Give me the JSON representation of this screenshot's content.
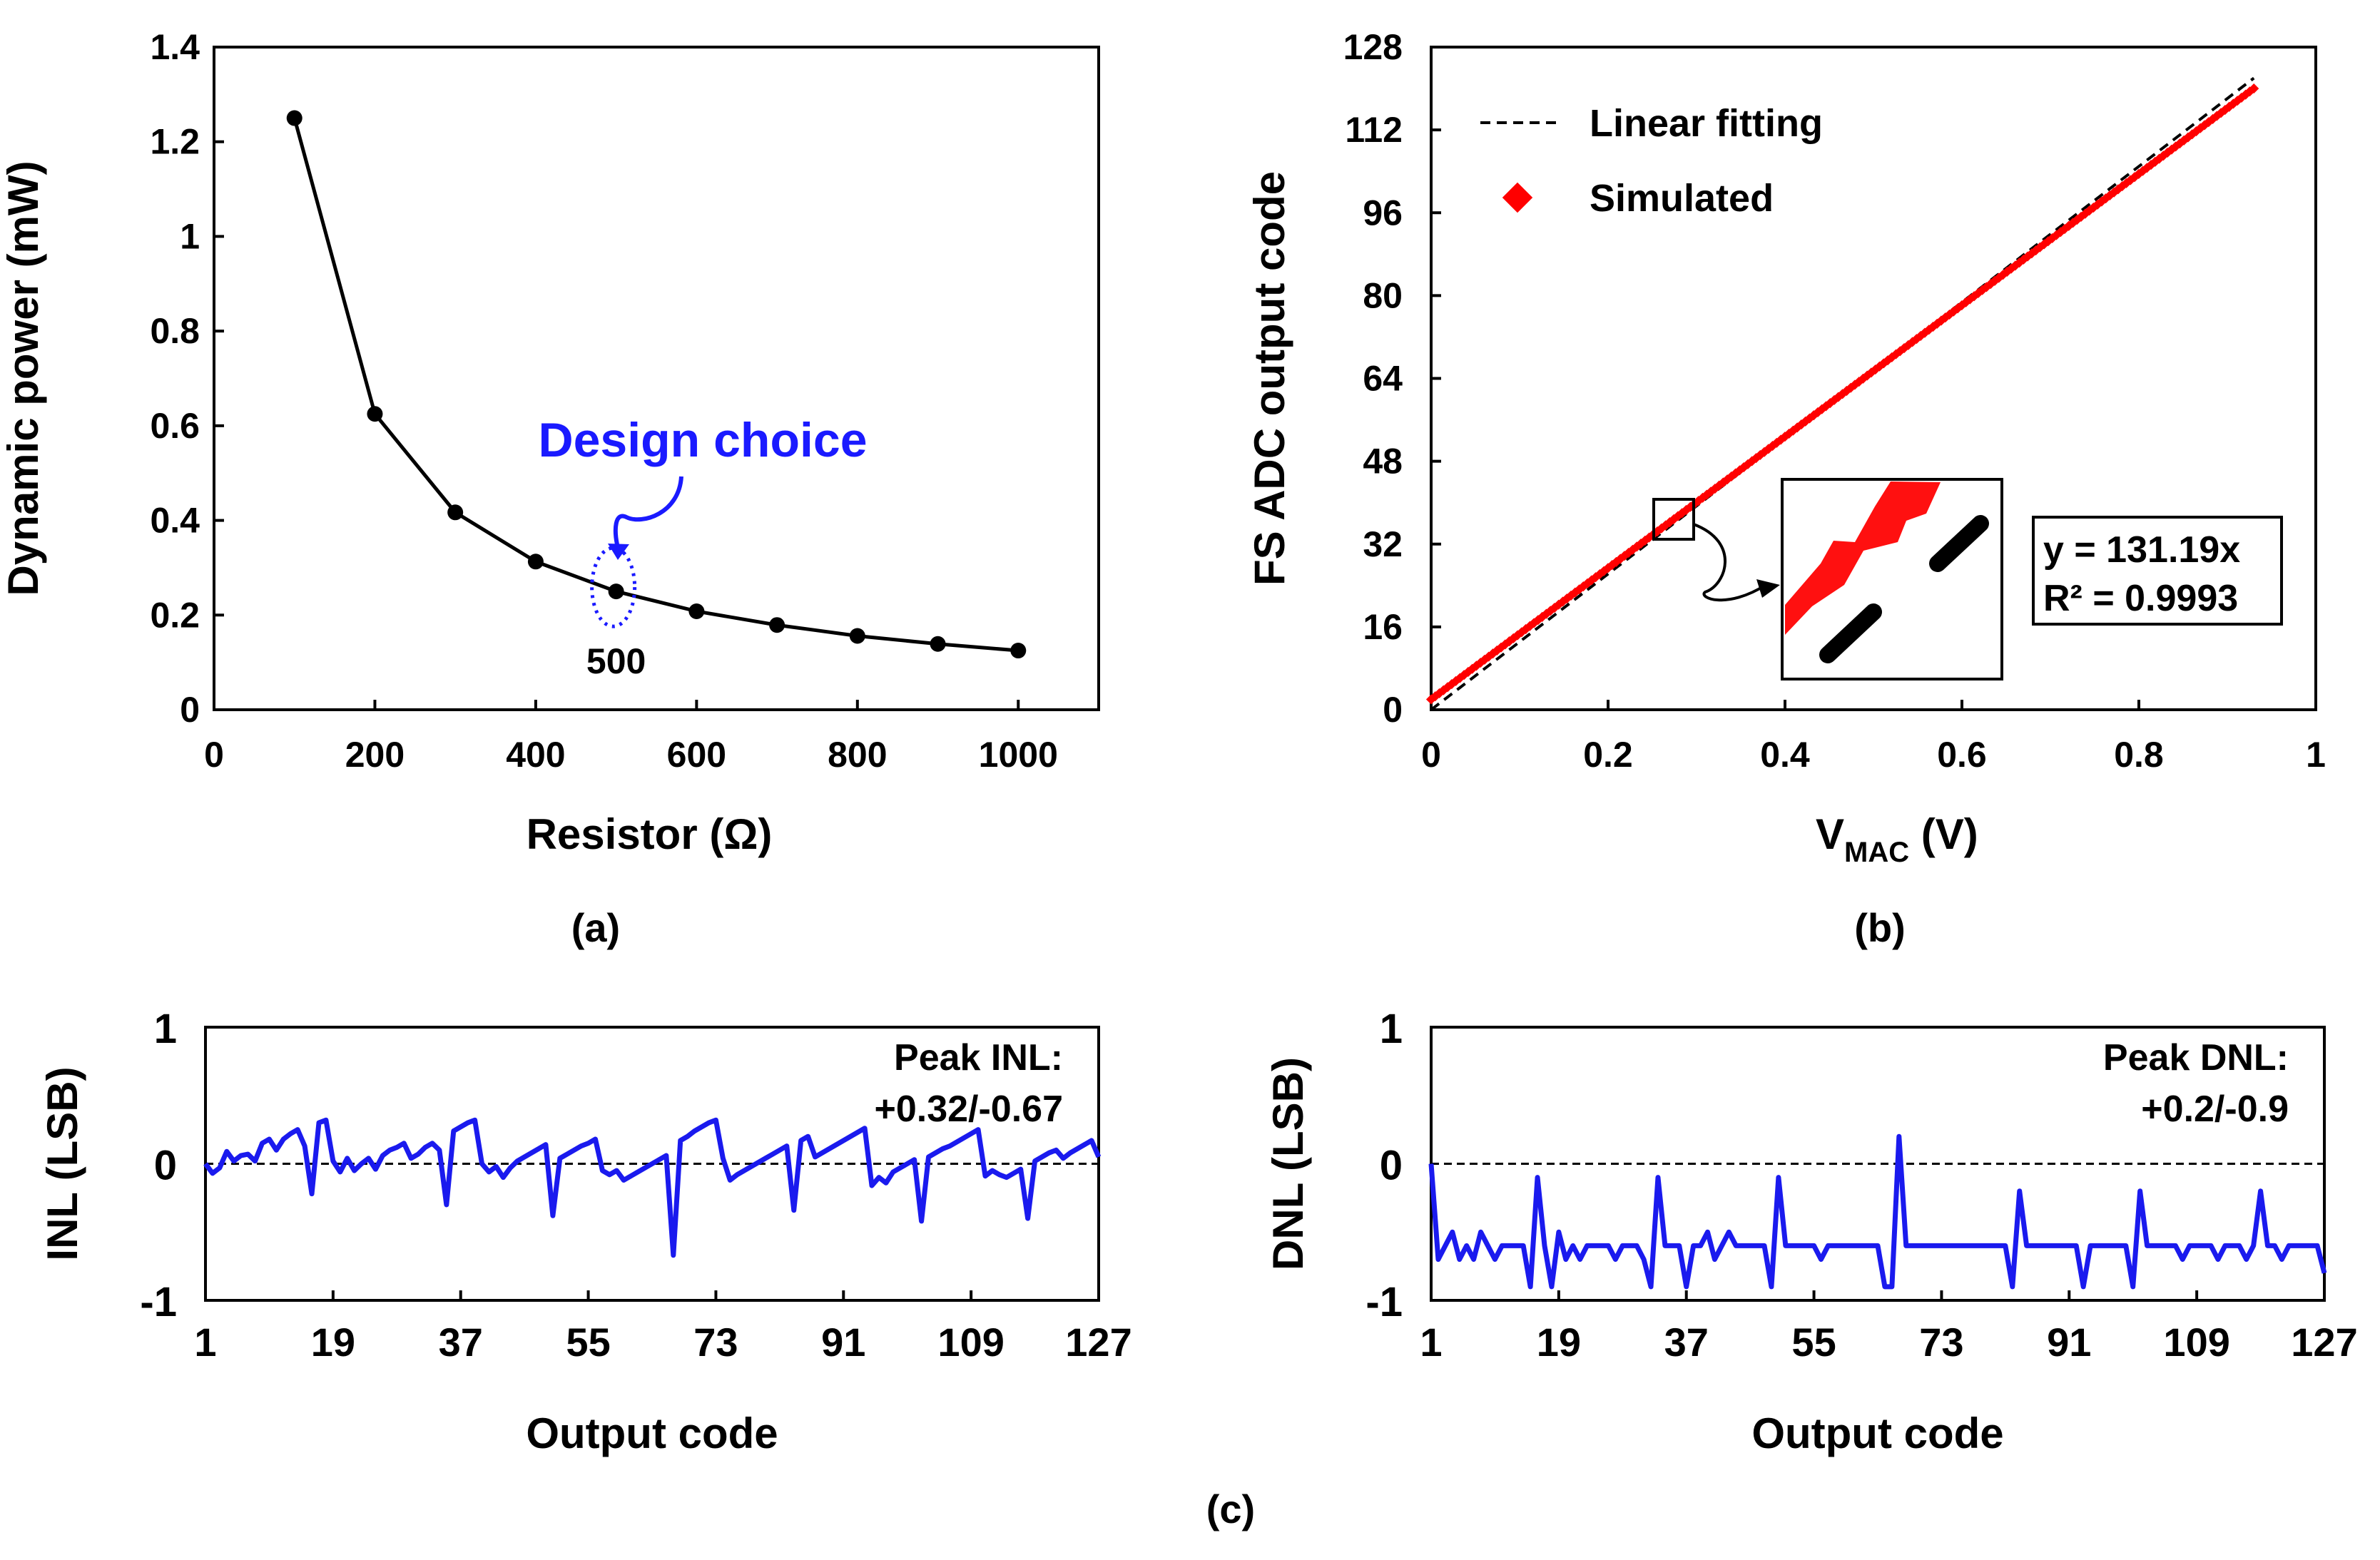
{
  "chart_data": [
    {
      "panel": "a",
      "type": "line",
      "caption": "(a)",
      "xlabel": "Resistor (Ω)",
      "ylabel": "Dynamic power (mW)",
      "xlim": [
        0,
        1100
      ],
      "ylim": [
        0,
        1.4
      ],
      "xticks": [
        "0",
        "200",
        "400",
        "600",
        "800",
        "1000"
      ],
      "yticks": [
        "0",
        "0.2",
        "0.4",
        "0.6",
        "0.8",
        "1",
        "1.2",
        "1.4"
      ],
      "series": [
        {
          "name": "Dynamic power",
          "x": [
            100,
            200,
            300,
            400,
            500,
            600,
            700,
            800,
            900,
            1000
          ],
          "y": [
            1.25,
            0.625,
            0.417,
            0.313,
            0.25,
            0.208,
            0.179,
            0.156,
            0.139,
            0.125
          ],
          "color": "#000000"
        }
      ],
      "annotation": {
        "text": "Design choice",
        "x": 500,
        "label": "500",
        "color": "#1a1aff"
      }
    },
    {
      "panel": "b",
      "type": "scatter",
      "caption": "(b)",
      "xlabel_main": "V",
      "xlabel_sub": "MAC",
      "xlabel_unit": " (V)",
      "ylabel": "FS ADC output code",
      "xlim": [
        0,
        1
      ],
      "ylim": [
        0,
        128
      ],
      "xticks": [
        "0",
        "0.2",
        "0.4",
        "0.6",
        "0.8",
        "1"
      ],
      "yticks": [
        "0",
        "16",
        "32",
        "48",
        "64",
        "80",
        "96",
        "112",
        "128"
      ],
      "legend": [
        "Linear fitting",
        "Simulated"
      ],
      "fit_slope": 131.19,
      "fit_label": "y = 131.19x",
      "r2_label": "R² = 0.9993",
      "simulated": {
        "x_start": 0,
        "x_end": 0.93,
        "y_start": 2,
        "y_end": 120,
        "color": "#ff0000"
      },
      "fit_color": "#000000"
    },
    {
      "panel": "c-inl",
      "type": "line",
      "xlabel": "Output code",
      "ylabel": "INL (LSB)",
      "xlim": [
        1,
        127
      ],
      "ylim": [
        -1,
        1
      ],
      "xticks": [
        "1",
        "19",
        "37",
        "55",
        "73",
        "91",
        "109",
        "127"
      ],
      "yticks": [
        "-1",
        "0",
        "1"
      ],
      "peak_title": "Peak INL:",
      "peak_value": "+0.32/-0.67",
      "color": "#1a1aee",
      "x": [
        1,
        2,
        3,
        4,
        5,
        6,
        7,
        8,
        9,
        10,
        11,
        12,
        13,
        14,
        15,
        16,
        17,
        18,
        19,
        20,
        21,
        22,
        23,
        24,
        25,
        26,
        27,
        28,
        29,
        30,
        31,
        32,
        33,
        34,
        35,
        36,
        37,
        38,
        39,
        40,
        41,
        42,
        43,
        44,
        45,
        46,
        47,
        48,
        49,
        50,
        51,
        52,
        53,
        54,
        55,
        56,
        57,
        58,
        59,
        60,
        61,
        62,
        63,
        64,
        65,
        66,
        67,
        68,
        69,
        70,
        71,
        72,
        73,
        74,
        75,
        76,
        77,
        78,
        79,
        80,
        81,
        82,
        83,
        84,
        85,
        86,
        87,
        88,
        89,
        90,
        91,
        92,
        93,
        94,
        95,
        96,
        97,
        98,
        99,
        100,
        101,
        102,
        103,
        104,
        105,
        106,
        107,
        108,
        109,
        110,
        111,
        112,
        113,
        114,
        115,
        116,
        117,
        118,
        119,
        120,
        121,
        122,
        123,
        124,
        125,
        126,
        127
      ],
      "y": [
        0,
        -0.07,
        -0.03,
        0.09,
        0.02,
        0.06,
        0.07,
        0.02,
        0.15,
        0.18,
        0.1,
        0.18,
        0.22,
        0.25,
        0.13,
        -0.22,
        0.3,
        0.32,
        0.02,
        -0.06,
        0.04,
        -0.05,
        0,
        0.04,
        -0.04,
        0.06,
        0.1,
        0.12,
        0.15,
        0.04,
        0.07,
        0.12,
        0.15,
        0.1,
        -0.3,
        0.24,
        0.27,
        0.3,
        0.32,
        0,
        -0.06,
        -0.02,
        -0.1,
        -0.03,
        0.02,
        0.05,
        0.08,
        0.11,
        0.14,
        -0.38,
        0.04,
        0.07,
        0.1,
        0.13,
        0.15,
        0.18,
        -0.05,
        -0.08,
        -0.05,
        -0.12,
        -0.09,
        -0.06,
        -0.03,
        0,
        0.03,
        0.06,
        -0.67,
        0.17,
        0.2,
        0.24,
        0.27,
        0.3,
        0.32,
        0.04,
        -0.12,
        -0.08,
        -0.05,
        -0.02,
        0.01,
        0.04,
        0.07,
        0.1,
        0.13,
        -0.34,
        0.17,
        0.2,
        0.05,
        0.08,
        0.11,
        0.14,
        0.17,
        0.2,
        0.23,
        0.26,
        -0.16,
        -0.1,
        -0.14,
        -0.06,
        -0.03,
        0,
        0.03,
        -0.42,
        0.05,
        0.08,
        0.11,
        0.13,
        0.16,
        0.19,
        0.22,
        0.25,
        -0.09,
        -0.05,
        -0.08,
        -0.1,
        -0.07,
        -0.04,
        -0.4,
        0.02,
        0.05,
        0.08,
        0.1,
        0.04,
        0.08,
        0.11,
        0.14,
        0.17,
        0.05
      ]
    },
    {
      "panel": "c-dnl",
      "type": "line",
      "caption": "(c)",
      "xlabel": "Output code",
      "ylabel": "DNL (LSB)",
      "xlim": [
        1,
        127
      ],
      "ylim": [
        -1,
        1
      ],
      "xticks": [
        "1",
        "19",
        "37",
        "55",
        "73",
        "91",
        "109",
        "127"
      ],
      "yticks": [
        "-1",
        "0",
        "1"
      ],
      "peak_title": "Peak DNL:",
      "peak_value": "+0.2/-0.9",
      "color": "#1a1aee",
      "x": [
        1,
        2,
        3,
        4,
        5,
        6,
        7,
        8,
        9,
        10,
        11,
        12,
        13,
        14,
        15,
        16,
        17,
        18,
        19,
        20,
        21,
        22,
        23,
        24,
        25,
        26,
        27,
        28,
        29,
        30,
        31,
        32,
        33,
        34,
        35,
        36,
        37,
        38,
        39,
        40,
        41,
        42,
        43,
        44,
        45,
        46,
        47,
        48,
        49,
        50,
        51,
        52,
        53,
        54,
        55,
        56,
        57,
        58,
        59,
        60,
        61,
        62,
        63,
        64,
        65,
        66,
        67,
        68,
        69,
        70,
        71,
        72,
        73,
        74,
        75,
        76,
        77,
        78,
        79,
        80,
        81,
        82,
        83,
        84,
        85,
        86,
        87,
        88,
        89,
        90,
        91,
        92,
        93,
        94,
        95,
        96,
        97,
        98,
        99,
        100,
        101,
        102,
        103,
        104,
        105,
        106,
        107,
        108,
        109,
        110,
        111,
        112,
        113,
        114,
        115,
        116,
        117,
        118,
        119,
        120,
        121,
        122,
        123,
        124,
        125,
        126,
        127
      ],
      "y": [
        0,
        -0.7,
        -0.6,
        -0.5,
        -0.7,
        -0.6,
        -0.7,
        -0.5,
        -0.6,
        -0.7,
        -0.6,
        -0.6,
        -0.6,
        -0.6,
        -0.9,
        -0.1,
        -0.6,
        -0.9,
        -0.5,
        -0.7,
        -0.6,
        -0.7,
        -0.6,
        -0.6,
        -0.6,
        -0.6,
        -0.7,
        -0.6,
        -0.6,
        -0.6,
        -0.7,
        -0.9,
        -0.1,
        -0.6,
        -0.6,
        -0.6,
        -0.9,
        -0.6,
        -0.6,
        -0.5,
        -0.7,
        -0.6,
        -0.5,
        -0.6,
        -0.6,
        -0.6,
        -0.6,
        -0.6,
        -0.9,
        -0.1,
        -0.6,
        -0.6,
        -0.6,
        -0.6,
        -0.6,
        -0.7,
        -0.6,
        -0.6,
        -0.6,
        -0.6,
        -0.6,
        -0.6,
        -0.6,
        -0.6,
        -0.9,
        -0.9,
        0.2,
        -0.6,
        -0.6,
        -0.6,
        -0.6,
        -0.6,
        -0.6,
        -0.6,
        -0.6,
        -0.6,
        -0.6,
        -0.6,
        -0.6,
        -0.6,
        -0.6,
        -0.6,
        -0.9,
        -0.2,
        -0.6,
        -0.6,
        -0.6,
        -0.6,
        -0.6,
        -0.6,
        -0.6,
        -0.6,
        -0.9,
        -0.6,
        -0.6,
        -0.6,
        -0.6,
        -0.6,
        -0.6,
        -0.9,
        -0.2,
        -0.6,
        -0.6,
        -0.6,
        -0.6,
        -0.6,
        -0.7,
        -0.6,
        -0.6,
        -0.6,
        -0.6,
        -0.7,
        -0.6,
        -0.6,
        -0.6,
        -0.7,
        -0.6,
        -0.2,
        -0.6,
        -0.6,
        -0.7,
        -0.6,
        -0.6,
        -0.6,
        -0.6,
        -0.6,
        -0.8
      ]
    }
  ]
}
